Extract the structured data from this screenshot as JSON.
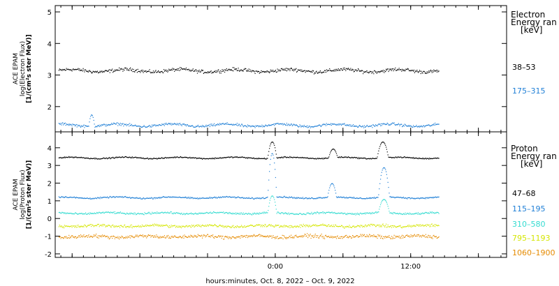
{
  "chart_data": [
    {
      "type": "scatter",
      "ylabel_lines": [
        "ACE EPAM",
        "log(Electron Flux)",
        "[1/(cm²s ster MeV)]"
      ],
      "ylim": [
        1.2,
        5.2
      ],
      "yticks": [
        2,
        3,
        4,
        5
      ],
      "side_title": [
        "Electron",
        "Energy ran",
        "[keV]"
      ],
      "series": [
        {
          "name": "38–53",
          "color": "#000000",
          "baseline": 3.15,
          "noise": 0.08,
          "events": []
        },
        {
          "name": "175–315",
          "color": "#1f7fd6",
          "baseline": 1.42,
          "noise": 0.06,
          "events": [
            {
              "t": -16.3,
              "peak": 1.75,
              "w": 0.25
            }
          ]
        }
      ]
    },
    {
      "type": "scatter",
      "ylabel_lines": [
        "ACE EPAM",
        "log(Proton Flux)",
        "[1/(cm²s ster MeV)]"
      ],
      "ylim": [
        -2.2,
        4.9
      ],
      "yticks": [
        -2,
        -1,
        0,
        1,
        2,
        3,
        4
      ],
      "side_title": [
        "Proton",
        "Energy ran",
        "[keV]"
      ],
      "series": [
        {
          "name": "47–68",
          "color": "#000000",
          "baseline": 3.45,
          "noise": 0.05,
          "events": [
            {
              "t": -0.3,
              "peak": 4.35,
              "w": 0.4
            },
            {
              "t": 5.1,
              "peak": 3.95,
              "w": 0.4
            },
            {
              "t": 9.5,
              "peak": 4.35,
              "w": 0.5
            }
          ]
        },
        {
          "name": "115–195",
          "color": "#1f7fd6",
          "baseline": 1.2,
          "noise": 0.06,
          "events": [
            {
              "t": -0.3,
              "peak": 3.7,
              "w": 0.4
            },
            {
              "t": 5.0,
              "peak": 2.0,
              "w": 0.4
            },
            {
              "t": 9.6,
              "peak": 2.9,
              "w": 0.5
            }
          ]
        },
        {
          "name": "310–580",
          "color": "#33dbd0",
          "baseline": 0.32,
          "noise": 0.08,
          "events": [
            {
              "t": -0.3,
              "peak": 1.3,
              "w": 0.4
            },
            {
              "t": 9.6,
              "peak": 1.1,
              "w": 0.5
            }
          ]
        },
        {
          "name": "795–1193",
          "color": "#d4e600",
          "baseline": -0.4,
          "noise": 0.12,
          "events": []
        },
        {
          "name": "1060–1900",
          "color": "#e58a00",
          "baseline": -1.0,
          "noise": 0.15,
          "events": []
        }
      ]
    }
  ],
  "x_axis": {
    "xlim_hours": [
      -19.5,
      20.5
    ],
    "data_end_hours": 14.5,
    "tick_labels": [
      {
        "t": 0,
        "label": "0:00"
      },
      {
        "t": 12,
        "label": "12:00"
      }
    ],
    "xlabel": "hours:minutes, Oct.  8, 2022 – Oct.  9, 2022"
  }
}
